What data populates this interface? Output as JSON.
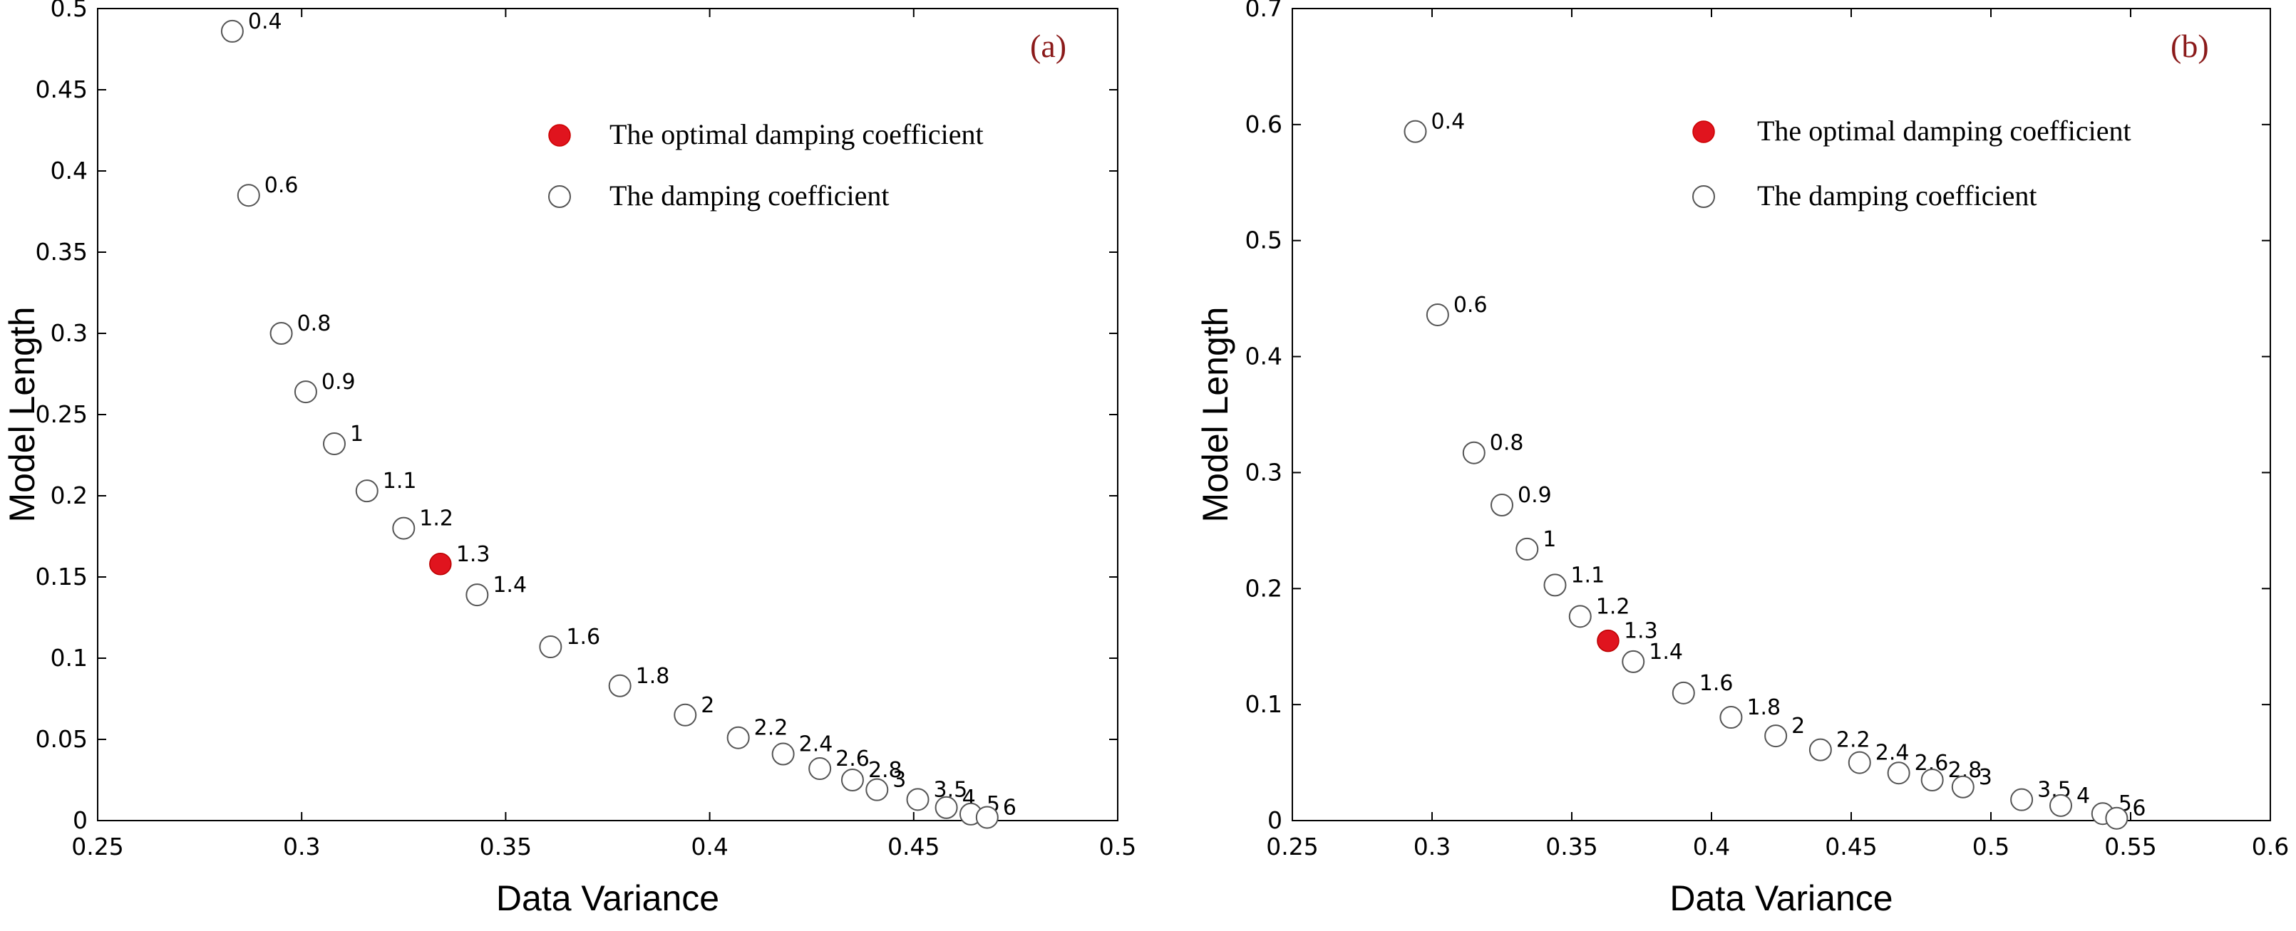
{
  "chart_data": [
    {
      "type": "scatter",
      "panel_label": "(a)",
      "xlabel": "Data Variance",
      "ylabel": "Model Length",
      "xlim": [
        0.25,
        0.5
      ],
      "ylim": [
        0,
        0.5
      ],
      "xticks": [
        0.25,
        0.3,
        0.35,
        0.4,
        0.45,
        0.5
      ],
      "xtick_labels": [
        "0.25",
        "0.3",
        "0.35",
        "0.4",
        "0.45",
        "0.5"
      ],
      "yticks": [
        0,
        0.05,
        0.1,
        0.15,
        0.2,
        0.25,
        0.3,
        0.35,
        0.4,
        0.45,
        0.5
      ],
      "ytick_labels": [
        "0",
        "0.05",
        "0.1",
        "0.15",
        "0.2",
        "0.25",
        "0.3",
        "0.35",
        "0.4",
        "0.45",
        "0.5"
      ],
      "legend": [
        {
          "label": "The optimal damping coefficient",
          "marker": "filled",
          "color": "#e0141e"
        },
        {
          "label": "The damping coefficient",
          "marker": "open",
          "color": "#555555"
        }
      ],
      "points": [
        {
          "label": "0.4",
          "x": 0.283,
          "y": 0.486
        },
        {
          "label": "0.6",
          "x": 0.287,
          "y": 0.385
        },
        {
          "label": "0.8",
          "x": 0.295,
          "y": 0.3
        },
        {
          "label": "0.9",
          "x": 0.301,
          "y": 0.264
        },
        {
          "label": "1",
          "x": 0.308,
          "y": 0.232
        },
        {
          "label": "1.1",
          "x": 0.316,
          "y": 0.203
        },
        {
          "label": "1.2",
          "x": 0.325,
          "y": 0.18
        },
        {
          "label": "1.3",
          "x": 0.334,
          "y": 0.158,
          "optimal": true
        },
        {
          "label": "1.4",
          "x": 0.343,
          "y": 0.139
        },
        {
          "label": "1.6",
          "x": 0.361,
          "y": 0.107
        },
        {
          "label": "1.8",
          "x": 0.378,
          "y": 0.083
        },
        {
          "label": "2",
          "x": 0.394,
          "y": 0.065
        },
        {
          "label": "2.2",
          "x": 0.407,
          "y": 0.051
        },
        {
          "label": "2.4",
          "x": 0.418,
          "y": 0.041
        },
        {
          "label": "2.6",
          "x": 0.427,
          "y": 0.032
        },
        {
          "label": "2.8",
          "x": 0.435,
          "y": 0.025
        },
        {
          "label": "3",
          "x": 0.441,
          "y": 0.019
        },
        {
          "label": "3.5",
          "x": 0.451,
          "y": 0.013
        },
        {
          "label": "4",
          "x": 0.458,
          "y": 0.008
        },
        {
          "label": "5",
          "x": 0.464,
          "y": 0.004
        },
        {
          "label": "6",
          "x": 0.468,
          "y": 0.002
        }
      ]
    },
    {
      "type": "scatter",
      "panel_label": "(b)",
      "xlabel": "Data Variance",
      "ylabel": "Model Length",
      "xlim": [
        0.25,
        0.6
      ],
      "ylim": [
        0,
        0.7
      ],
      "xticks": [
        0.25,
        0.3,
        0.35,
        0.4,
        0.45,
        0.5,
        0.55,
        0.6
      ],
      "xtick_labels": [
        "0.25",
        "0.3",
        "0.35",
        "0.4",
        "0.45",
        "0.5",
        "0.55",
        "0.6"
      ],
      "yticks": [
        0,
        0.1,
        0.2,
        0.3,
        0.4,
        0.5,
        0.6,
        0.7
      ],
      "ytick_labels": [
        "0",
        "0.1",
        "0.2",
        "0.3",
        "0.4",
        "0.5",
        "0.6",
        "0.7"
      ],
      "legend": [
        {
          "label": "The optimal damping coefficient",
          "marker": "filled",
          "color": "#e0141e"
        },
        {
          "label": "The damping coefficient",
          "marker": "open",
          "color": "#555555"
        }
      ],
      "points": [
        {
          "label": "0.4",
          "x": 0.294,
          "y": 0.594
        },
        {
          "label": "0.6",
          "x": 0.302,
          "y": 0.436
        },
        {
          "label": "0.8",
          "x": 0.315,
          "y": 0.317
        },
        {
          "label": "0.9",
          "x": 0.325,
          "y": 0.272
        },
        {
          "label": "1",
          "x": 0.334,
          "y": 0.234
        },
        {
          "label": "1.1",
          "x": 0.344,
          "y": 0.203
        },
        {
          "label": "1.2",
          "x": 0.353,
          "y": 0.176
        },
        {
          "label": "1.3",
          "x": 0.363,
          "y": 0.155,
          "optimal": true
        },
        {
          "label": "1.4",
          "x": 0.372,
          "y": 0.137
        },
        {
          "label": "1.6",
          "x": 0.39,
          "y": 0.11
        },
        {
          "label": "1.8",
          "x": 0.407,
          "y": 0.089
        },
        {
          "label": "2",
          "x": 0.423,
          "y": 0.073
        },
        {
          "label": "2.2",
          "x": 0.439,
          "y": 0.061
        },
        {
          "label": "2.4",
          "x": 0.453,
          "y": 0.05
        },
        {
          "label": "2.6",
          "x": 0.467,
          "y": 0.041
        },
        {
          "label": "2.8",
          "x": 0.479,
          "y": 0.035
        },
        {
          "label": "3",
          "x": 0.49,
          "y": 0.029
        },
        {
          "label": "3.5",
          "x": 0.511,
          "y": 0.018
        },
        {
          "label": "4",
          "x": 0.525,
          "y": 0.013
        },
        {
          "label": "5",
          "x": 0.54,
          "y": 0.006
        },
        {
          "label": "6",
          "x": 0.545,
          "y": 0.002
        }
      ]
    }
  ]
}
